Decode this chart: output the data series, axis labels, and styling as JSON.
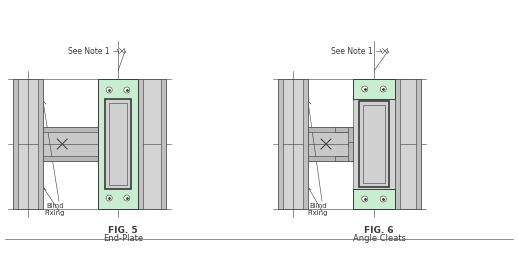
{
  "bg_color": "#ffffff",
  "col_gray": "#d4d4d4",
  "col_flange": "#c0c0c0",
  "beam_gray": "#c8c8c8",
  "beam_flange": "#b8b8b8",
  "green_fill": "#c8edcf",
  "box_gray": "#d0d0d0",
  "line_color": "#3a3a3a",
  "fig5_label": "FIG. 5",
  "fig5_sub": "End-Plate",
  "fig6_label": "FIG. 6",
  "fig6_sub": "Angle Cleats",
  "note_text": "See Note 1",
  "blind_fixing": "Blind\nFixing"
}
